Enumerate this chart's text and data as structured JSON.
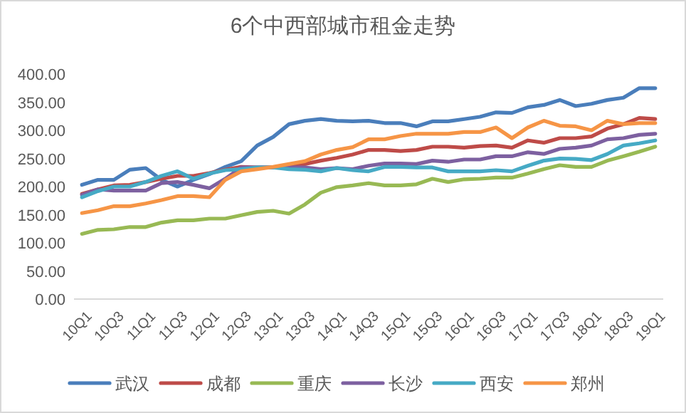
{
  "chart_data": {
    "type": "line",
    "title": "6个中西部城市租金走势",
    "categories": [
      "10Q1",
      null,
      "10Q3",
      null,
      "11Q1",
      null,
      "11Q3",
      null,
      "12Q1",
      null,
      "12Q3",
      null,
      "13Q1",
      null,
      "13Q3",
      null,
      "14Q1",
      null,
      "14Q3",
      null,
      "15Q1",
      null,
      "15Q3",
      null,
      "16Q1",
      null,
      "16Q3",
      null,
      "17Q1",
      null,
      "17Q3",
      null,
      "18Q1",
      null,
      "18Q3",
      null,
      "19Q1"
    ],
    "ylim": [
      0,
      400
    ],
    "yticks": [
      {
        "value": 0,
        "label": "0.00"
      },
      {
        "value": 50,
        "label": "50.00"
      },
      {
        "value": 100,
        "label": "100.00"
      },
      {
        "value": 150,
        "label": "150.00"
      },
      {
        "value": 200,
        "label": "200.00"
      },
      {
        "value": 250,
        "label": "250.00"
      },
      {
        "value": 300,
        "label": "300.00"
      },
      {
        "value": 350,
        "label": "350.00"
      },
      {
        "value": 400,
        "label": "400.00"
      }
    ],
    "grid": false,
    "legend": "bottom",
    "marker": "none",
    "line_style": "solid",
    "series": [
      {
        "name": "武汉",
        "color": "#4a7ebb",
        "values": [
          203,
          212,
          212,
          230,
          233,
          212,
          200,
          212,
          222,
          235,
          245,
          273,
          288,
          311,
          317,
          320,
          317,
          316,
          317,
          313,
          313,
          307,
          316,
          316,
          320,
          324,
          332,
          331,
          341,
          345,
          354,
          343,
          347,
          354,
          358,
          375,
          375
        ]
      },
      {
        "name": "成都",
        "color": "#be4b48",
        "values": [
          187,
          195,
          202,
          203,
          208,
          214,
          219,
          219,
          224,
          230,
          235,
          234,
          234,
          234,
          240,
          246,
          251,
          257,
          265,
          265,
          263,
          265,
          271,
          271,
          269,
          272,
          273,
          269,
          282,
          278,
          286,
          286,
          289,
          303,
          311,
          322,
          320
        ]
      },
      {
        "name": "重庆",
        "color": "#98b954",
        "values": [
          116,
          123,
          124,
          128,
          128,
          136,
          140,
          140,
          143,
          143,
          149,
          155,
          157,
          152,
          168,
          189,
          199,
          202,
          206,
          202,
          202,
          204,
          214,
          208,
          213,
          214,
          216,
          216,
          223,
          231,
          238,
          235,
          235,
          246,
          254,
          262,
          271
        ]
      },
      {
        "name": "长沙",
        "color": "#7d60a0",
        "values": [
          185,
          195,
          193,
          193,
          193,
          206,
          208,
          203,
          197,
          214,
          234,
          234,
          234,
          234,
          234,
          231,
          233,
          231,
          237,
          241,
          241,
          240,
          246,
          244,
          248,
          248,
          254,
          254,
          261,
          258,
          267,
          269,
          273,
          284,
          286,
          292,
          294
        ]
      },
      {
        "name": "西安",
        "color": "#46aac5",
        "values": [
          181,
          192,
          200,
          200,
          208,
          219,
          227,
          214,
          223,
          229,
          231,
          234,
          234,
          231,
          230,
          227,
          233,
          229,
          227,
          235,
          235,
          234,
          234,
          227,
          227,
          227,
          229,
          227,
          237,
          246,
          250,
          249,
          247,
          258,
          273,
          277,
          282
        ]
      },
      {
        "name": "郑州",
        "color": "#f69546",
        "values": [
          153,
          158,
          165,
          165,
          170,
          176,
          183,
          183,
          181,
          212,
          227,
          231,
          235,
          240,
          245,
          257,
          265,
          270,
          284,
          284,
          290,
          294,
          294,
          294,
          297,
          297,
          305,
          286,
          305,
          317,
          308,
          307,
          300,
          317,
          311,
          313,
          313
        ]
      }
    ]
  }
}
